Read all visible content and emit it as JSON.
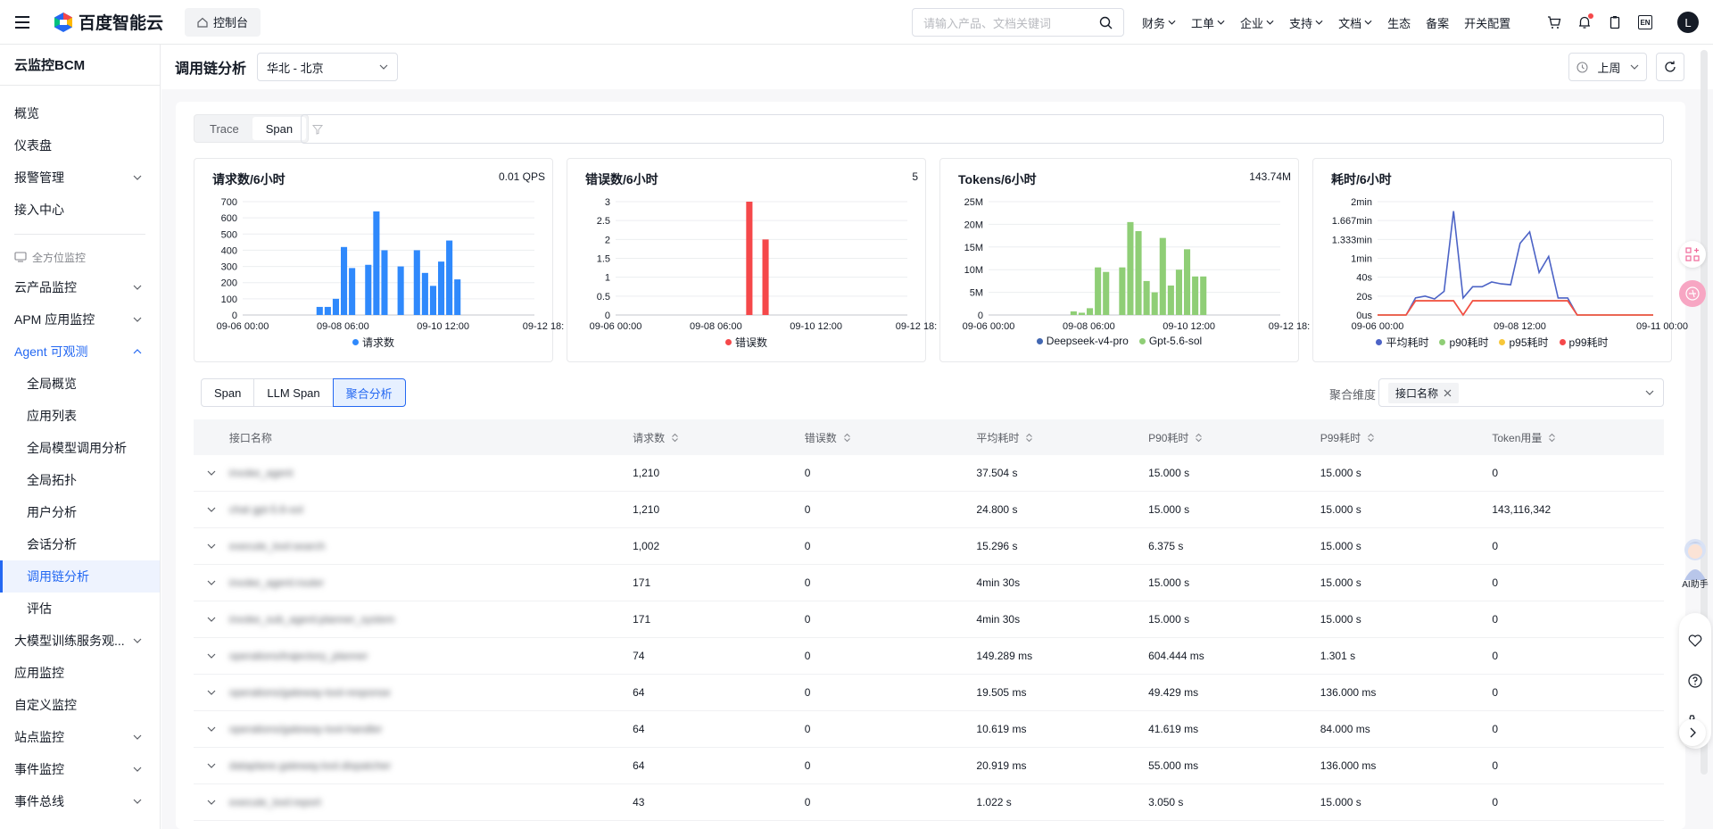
{
  "topbar": {
    "brand": "百度智能云",
    "console": "控制台",
    "search_placeholder": "请输入产品、文档关键词",
    "nav": [
      {
        "label": "财务",
        "dropdown": true
      },
      {
        "label": "工单",
        "dropdown": true
      },
      {
        "label": "企业",
        "dropdown": true
      },
      {
        "label": "支持",
        "dropdown": true
      },
      {
        "label": "文档",
        "dropdown": true
      },
      {
        "label": "生态",
        "dropdown": false
      },
      {
        "label": "备案",
        "dropdown": false
      },
      {
        "label": "开关配置",
        "dropdown": false
      }
    ],
    "lang": "EN",
    "avatar": "L"
  },
  "sidebar": {
    "title": "云监控BCM",
    "items_top": [
      "概览",
      "仪表盘",
      "报警管理",
      "接入中心"
    ],
    "group": "全方位监控",
    "items": [
      {
        "label": "云产品监控",
        "arrow": "down"
      },
      {
        "label": "APM 应用监控",
        "arrow": "down"
      },
      {
        "label": "Agent 可观测",
        "arrow": "up"
      }
    ],
    "sub_items": [
      "全局概览",
      "应用列表",
      "全局模型调用分析",
      "全局拓扑",
      "用户分析",
      "会话分析",
      "调用链分析",
      "评估"
    ],
    "active": "调用链分析",
    "items_bottom": [
      {
        "label": "大模型训练服务观...",
        "arrow": "down"
      },
      {
        "label": "应用监控",
        "arrow": ""
      },
      {
        "label": "自定义监控",
        "arrow": ""
      },
      {
        "label": "站点监控",
        "arrow": "down"
      },
      {
        "label": "事件监控",
        "arrow": "down"
      },
      {
        "label": "事件总线",
        "arrow": "down"
      }
    ]
  },
  "page": {
    "title": "调用链分析",
    "region": "华北 - 北京",
    "time_range": "上周"
  },
  "tabs_top": [
    "Trace",
    "Span"
  ],
  "tabs_top_active": "Span",
  "charts": [
    {
      "title": "请求数/6小时",
      "value": "0.01 QPS",
      "chart_data": {
        "type": "bar",
        "yticks": [
          "700",
          "600",
          "500",
          "400",
          "300",
          "200",
          "100",
          "0"
        ],
        "ylim": [
          0,
          700
        ],
        "xticks": [
          "09-06 00:00",
          "09-08 06:00",
          "09-10 12:00",
          "09-12 18:"
        ],
        "series": [
          {
            "name": "请求数",
            "color": "#2f89fc",
            "values": [
              0,
              0,
              0,
              0,
              0,
              0,
              0,
              0,
              0,
              50,
              50,
              100,
              420,
              290,
              0,
              310,
              640,
              400,
              0,
              300,
              0,
              400,
              260,
              180,
              330,
              460,
              220,
              0,
              0,
              0,
              0,
              0,
              0,
              0,
              0,
              0
            ]
          }
        ]
      }
    },
    {
      "title": "错误数/6小时",
      "value": "5",
      "chart_data": {
        "type": "bar",
        "yticks": [
          "3",
          "2.5",
          "2",
          "1.5",
          "1",
          "0.5",
          "0"
        ],
        "ylim": [
          0,
          3
        ],
        "xticks": [
          "09-06 00:00",
          "09-08 06:00",
          "09-10 12:00",
          "09-12 18:"
        ],
        "series": [
          {
            "name": "错误数",
            "color": "#f5484a",
            "values": [
              0,
              0,
              0,
              0,
              0,
              0,
              0,
              0,
              0,
              0,
              0,
              0,
              0,
              0,
              0,
              0,
              3,
              0,
              2,
              0,
              0,
              0,
              0,
              0,
              0,
              0,
              0,
              0,
              0,
              0,
              0,
              0,
              0,
              0,
              0,
              0
            ]
          }
        ]
      }
    },
    {
      "title": "Tokens/6小时",
      "value": "143.74M",
      "chart_data": {
        "type": "bar",
        "yticks": [
          "25M",
          "20M",
          "15M",
          "10M",
          "5M",
          "0"
        ],
        "ylim": [
          0,
          25
        ],
        "xticks": [
          "09-06 00:00",
          "09-08 06:00",
          "09-10 12:00",
          "09-12 18:"
        ],
        "series": [
          {
            "name": "Deepseek-v4-pro",
            "color": "#4267b2",
            "values": [
              0,
              0,
              0,
              0,
              0,
              0,
              0,
              0,
              0,
              0,
              0,
              0,
              0,
              0,
              0,
              0,
              0,
              0,
              0,
              0,
              0,
              0,
              0,
              0,
              0,
              0,
              0,
              0,
              0,
              0,
              0,
              0,
              0,
              0,
              0,
              0
            ]
          },
          {
            "name": "Gpt-5.6-sol",
            "color": "#8fce76",
            "values": [
              0,
              0,
              0,
              0,
              0,
              0,
              0,
              0,
              0,
              0,
              0.8,
              0.5,
              1.5,
              10.5,
              9.5,
              0,
              10.5,
              20.5,
              18.5,
              7.5,
              5,
              17,
              6.5,
              10,
              14.5,
              8.5,
              8.5,
              0,
              0,
              0,
              0,
              0,
              0,
              0,
              0,
              0
            ]
          }
        ]
      }
    },
    {
      "title": "耗时/6小时",
      "value": "",
      "chart_data": {
        "type": "line",
        "yticks": [
          "2min",
          "1.667min",
          "1.333min",
          "1min",
          "40s",
          "20s",
          "0us"
        ],
        "ylim": [
          0,
          120
        ],
        "xticks": [
          "09-06 00:00",
          "09-08 12:00",
          "09-11 00:00"
        ],
        "series": [
          {
            "name": "平均耗时",
            "color": "#4c63c6",
            "values": [
              0,
              0,
              0,
              0,
              18,
              20,
              17,
              25,
              110,
              18,
              30,
              30,
              35,
              33,
              32,
              76,
              88,
              45,
              62,
              18,
              18,
              0,
              0,
              0,
              0,
              0,
              0,
              0,
              0,
              0
            ]
          },
          {
            "name": "p90耗时",
            "color": "#8fce76",
            "values": [
              0,
              0,
              0,
              0,
              15,
              15,
              15,
              15,
              15,
              0,
              15,
              15,
              15,
              15,
              15,
              15,
              15,
              15,
              15,
              15,
              15,
              0,
              0,
              0,
              0,
              0,
              0,
              0,
              0,
              0
            ]
          },
          {
            "name": "p95耗时",
            "color": "#f7c739",
            "values": [
              0,
              0,
              0,
              0,
              15,
              15,
              15,
              15,
              15,
              0,
              15,
              15,
              15,
              15,
              15,
              15,
              15,
              15,
              15,
              15,
              15,
              0,
              0,
              0,
              0,
              0,
              0,
              0,
              0,
              0
            ]
          },
          {
            "name": "p99耗时",
            "color": "#f5484a",
            "values": [
              0,
              0,
              0,
              0,
              15,
              15,
              15,
              15,
              15,
              0,
              15,
              15,
              15,
              15,
              15,
              15,
              15,
              15,
              15,
              15,
              15,
              0,
              0,
              0,
              0,
              0,
              0,
              0,
              0,
              0
            ]
          }
        ]
      }
    }
  ],
  "tabs_bottom": [
    "Span",
    "LLM Span",
    "聚合分析"
  ],
  "tabs_bottom_active": "聚合分析",
  "dimension": {
    "label": "聚合维度",
    "tag": "接口名称"
  },
  "table": {
    "columns": [
      "接口名称",
      "请求数",
      "错误数",
      "平均耗时",
      "P90耗时",
      "P99耗时",
      "Token用量"
    ],
    "rows": [
      [
        "invoke_agent",
        "1,210",
        "0",
        "37.504 s",
        "15.000 s",
        "15.000 s",
        "0"
      ],
      [
        "chat gpt-5.6-sol",
        "1,210",
        "0",
        "24.800 s",
        "15.000 s",
        "15.000 s",
        "143,116,342"
      ],
      [
        "execute_tool:search",
        "1,002",
        "0",
        "15.296 s",
        "6.375 s",
        "15.000 s",
        "0"
      ],
      [
        "invoke_agent:router",
        "171",
        "0",
        "4min 30s",
        "15.000 s",
        "15.000 s",
        "0"
      ],
      [
        "invoke_sub_agent:planner_system",
        "171",
        "0",
        "4min 30s",
        "15.000 s",
        "15.000 s",
        "0"
      ],
      [
        "operations/trajectory_planner",
        "74",
        "0",
        "149.289 ms",
        "604.444 ms",
        "1.301 s",
        "0"
      ],
      [
        "operations/gateway-tool-response",
        "64",
        "0",
        "19.505 ms",
        "49.429 ms",
        "136.000 ms",
        "0"
      ],
      [
        "operations/gateway-tool-handler",
        "64",
        "0",
        "10.619 ms",
        "41.619 ms",
        "84.000 ms",
        "0"
      ],
      [
        "dataplane.gateway.tool.dispatcher",
        "64",
        "0",
        "20.919 ms",
        "55.000 ms",
        "136.000 ms",
        "0"
      ],
      [
        "execute_tool:report",
        "43",
        "0",
        "1.022 s",
        "3.050 s",
        "15.000 s",
        "0"
      ]
    ]
  },
  "ai_helper": "AI助手"
}
